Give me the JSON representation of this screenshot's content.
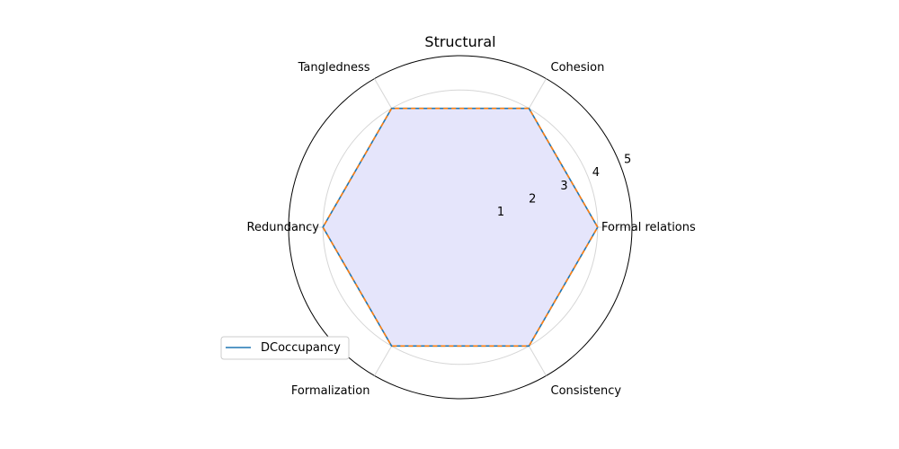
{
  "chart_data": {
    "type": "radar",
    "title": "Structural",
    "categories": [
      "Formal relations",
      "Cohesion",
      "Tangledness",
      "Redundancy",
      "Formalization",
      "Consistency"
    ],
    "rlim": [
      0,
      5
    ],
    "rticks": [
      1,
      2,
      3,
      4,
      5
    ],
    "grid": true,
    "legend": {
      "placement": "lower-left",
      "entries": [
        "DCoccupancy"
      ]
    },
    "series": [
      {
        "name": "DCoccupancy",
        "values": [
          4,
          4,
          4,
          4,
          4,
          4
        ],
        "color": "#1f77b4",
        "style": "solid"
      },
      {
        "name": "",
        "values": [
          4,
          4,
          4,
          4,
          4,
          4
        ],
        "color": "#ff7f0e",
        "style": "dashed"
      }
    ],
    "fill_color": "#e5e5fb"
  }
}
